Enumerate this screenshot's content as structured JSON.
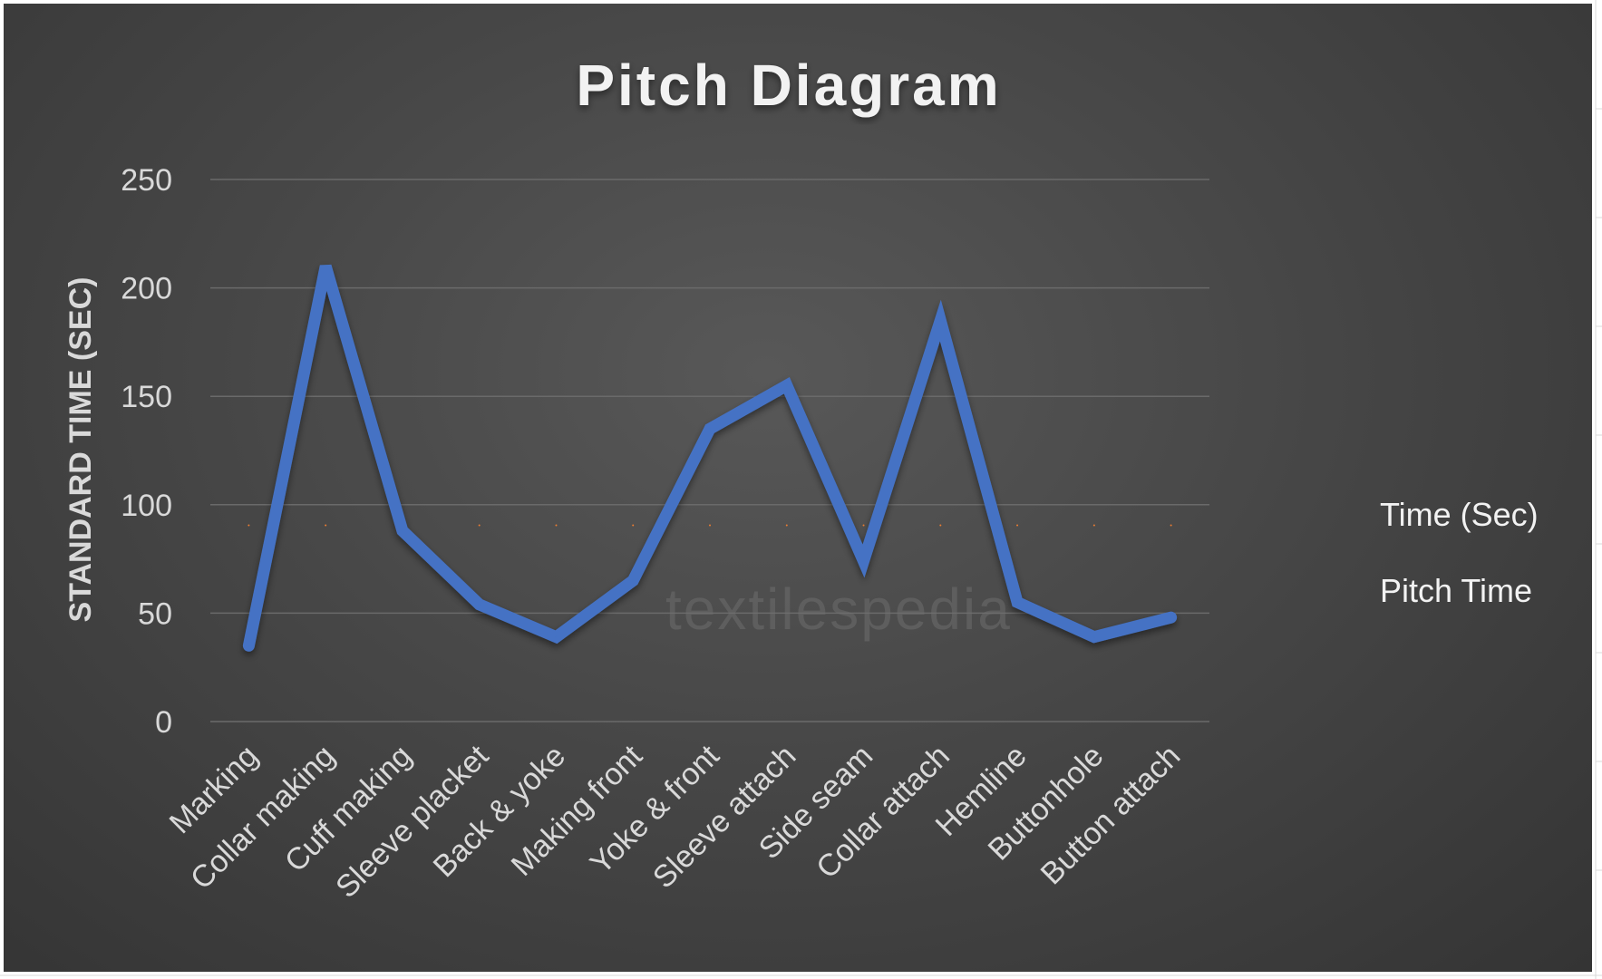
{
  "chart_data": {
    "type": "line",
    "title": "Pitch Diagram",
    "xlabel": "",
    "ylabel": "STANDARD TIME (SEC)",
    "categories": [
      "Marking",
      "Collar making",
      "Cuff making",
      "Sleeve placket",
      "Back & yoke",
      "Making front",
      "Yoke & front",
      "Sleeve attach",
      "Side seam",
      "Collar attach",
      "Hemline",
      "Buttonhole",
      "Button attach"
    ],
    "ylim": [
      0,
      250
    ],
    "yticks": [
      0,
      50,
      100,
      150,
      200,
      250
    ],
    "grid": true,
    "legend_position": "right",
    "series": [
      {
        "name": "Time (Sec)",
        "color": "#4472c4",
        "values": [
          35,
          210,
          88,
          54,
          39,
          65,
          135,
          155,
          74,
          185,
          55,
          39,
          48
        ]
      },
      {
        "name": "Pitch Time",
        "color": "#ed7d31",
        "values": [
          90.5,
          90.5,
          90.5,
          90.5,
          90.5,
          90.5,
          90.5,
          90.5,
          90.5,
          90.5,
          90.5,
          90.5,
          90.5
        ]
      }
    ],
    "watermark": "textilespedia"
  }
}
